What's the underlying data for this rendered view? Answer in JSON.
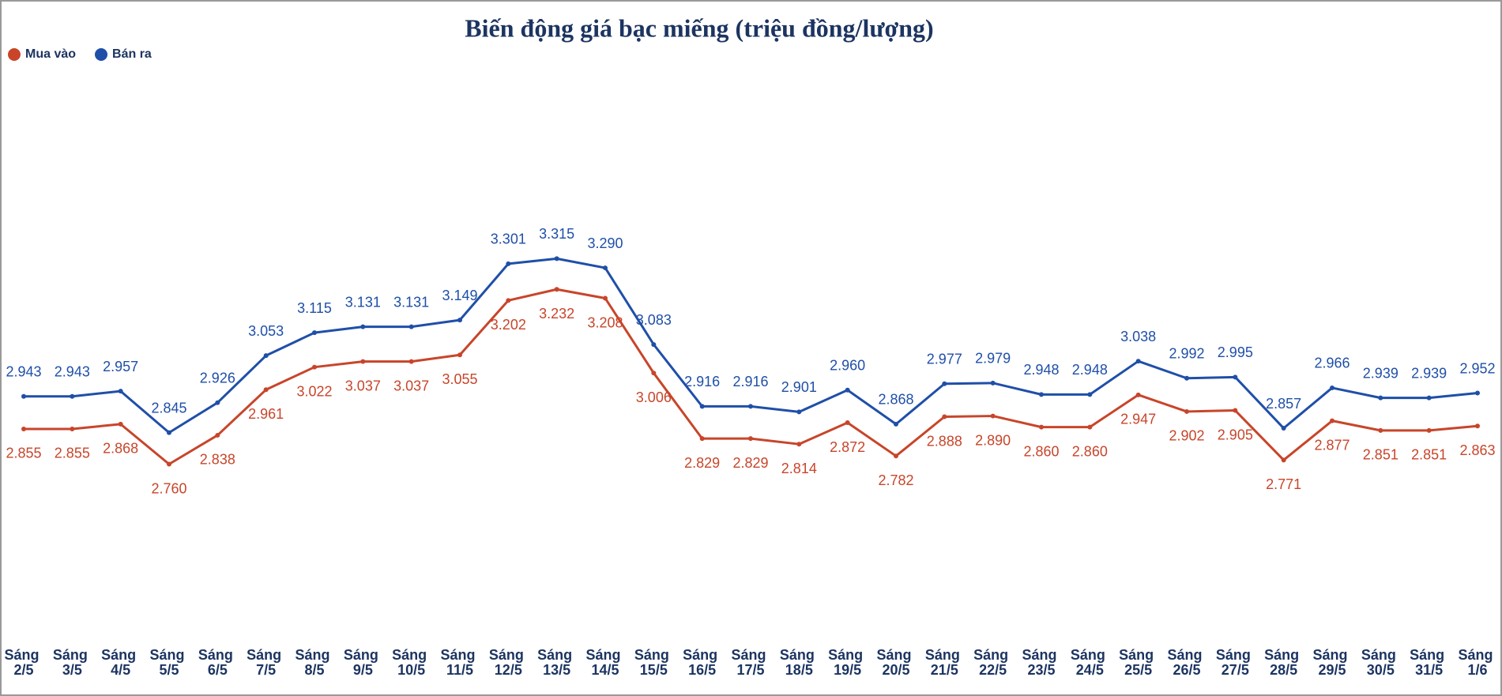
{
  "chart_data": {
    "type": "line",
    "title": "Biến động giá bạc miếng (triệu đồng/lượng)",
    "categories": [
      "Sáng 2/5",
      "Sáng 3/5",
      "Sáng 4/5",
      "Sáng 5/5",
      "Sáng 6/5",
      "Sáng 7/5",
      "Sáng 8/5",
      "Sáng 9/5",
      "Sáng 10/5",
      "Sáng 11/5",
      "Sáng 12/5",
      "Sáng 13/5",
      "Sáng 14/5",
      "Sáng 15/5",
      "Sáng 16/5",
      "Sáng 17/5",
      "Sáng 18/5",
      "Sáng 19/5",
      "Sáng 20/5",
      "Sáng 21/5",
      "Sáng 22/5",
      "Sáng 23/5",
      "Sáng 24/5",
      "Sáng 25/5",
      "Sáng 26/5",
      "Sáng 27/5",
      "Sáng 28/5",
      "Sáng 29/5",
      "Sáng 30/5",
      "Sáng 31/5",
      "Sáng 1/6"
    ],
    "series": [
      {
        "name": "Mua vào",
        "color": "#c8452a",
        "values": [
          2.855,
          2.855,
          2.868,
          2.76,
          2.838,
          2.961,
          3.022,
          3.037,
          3.037,
          3.055,
          3.202,
          3.232,
          3.208,
          3.006,
          2.829,
          2.829,
          2.814,
          2.872,
          2.782,
          2.888,
          2.89,
          2.86,
          2.86,
          2.947,
          2.902,
          2.905,
          2.771,
          2.877,
          2.851,
          2.851,
          2.863
        ],
        "value_labels": [
          "2.855",
          "2.855",
          "2.868",
          "2.760",
          "2.838",
          "2.961",
          "3.022",
          "3.037",
          "3.037",
          "3.055",
          "3.202",
          "3.232",
          "3.208",
          "3.006",
          "2.829",
          "2.829",
          "2.814",
          "2.872",
          "2.782",
          "2.888",
          "2.890",
          "2.860",
          "2.860",
          "2.947",
          "2.902",
          "2.905",
          "2.771",
          "2.877",
          "2.851",
          "2.851",
          "2.863"
        ]
      },
      {
        "name": "Bán ra",
        "color": "#1f4fa8",
        "values": [
          2.943,
          2.943,
          2.957,
          2.845,
          2.926,
          3.053,
          3.115,
          3.131,
          3.131,
          3.149,
          3.301,
          3.315,
          3.29,
          3.083,
          2.916,
          2.916,
          2.901,
          2.96,
          2.868,
          2.977,
          2.979,
          2.948,
          2.948,
          3.038,
          2.992,
          2.995,
          2.857,
          2.966,
          2.939,
          2.939,
          2.952
        ],
        "value_labels": [
          "2.943",
          "2.943",
          "2.957",
          "2.845",
          "2.926",
          "3.053",
          "3.115",
          "3.131",
          "3.131",
          "3.149",
          "3.301",
          "3.315",
          "3.290",
          "3.083",
          "2.916",
          "2.916",
          "2.901",
          "2.960",
          "2.868",
          "2.977",
          "2.979",
          "2.948",
          "2.948",
          "3.038",
          "2.992",
          "2.995",
          "2.857",
          "2.966",
          "2.939",
          "2.939",
          "2.952"
        ]
      }
    ],
    "ylim": [
      2.2,
      3.8
    ]
  }
}
